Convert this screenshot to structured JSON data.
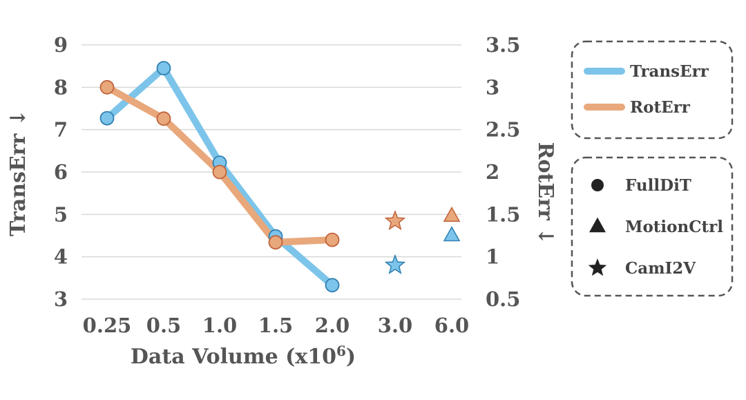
{
  "chart_data": {
    "type": "line",
    "categories": [
      "0.25",
      "0.5",
      "1.0",
      "1.5",
      "2.0",
      "3.0",
      "6.0"
    ],
    "xlabel_main": "Data Volume (x10",
    "xlabel_sup": "6",
    "xlabel_close": ")",
    "ylabel_left": "TransErr ↓",
    "ylabel_right": "RotErr ↓",
    "yticks_left": [
      "3",
      "4",
      "5",
      "6",
      "7",
      "8",
      "9"
    ],
    "yticks_right": [
      "0.5",
      "1",
      "1.5",
      "2",
      "2.5",
      "3",
      "3.5"
    ],
    "ylim_left": [
      3,
      9
    ],
    "ylim_right": [
      0.5,
      3.5
    ],
    "grid": true,
    "series": [
      {
        "name": "TransErr",
        "axis": "left",
        "color": "#7cc4ea",
        "marker_stroke": "#2f7fb0",
        "values": [
          7.27,
          8.45,
          6.22,
          4.48,
          3.33,
          null,
          null
        ]
      },
      {
        "name": "RotErr",
        "axis": "right",
        "color": "#e8a87c",
        "marker_stroke": "#c0623a",
        "values": [
          3.0,
          2.63,
          2.0,
          1.17,
          1.2,
          null,
          null
        ]
      }
    ],
    "other_methods": [
      {
        "method": "CamI2V",
        "category": "3.0",
        "marker": "star",
        "TransErr": 3.8,
        "RotErr": 1.42
      },
      {
        "method": "MotionCtrl",
        "category": "6.0",
        "marker": "triangle",
        "TransErr": 4.5,
        "RotErr": 1.48
      }
    ],
    "legend_series": [
      {
        "label": "TransErr",
        "color": "#7cc4ea"
      },
      {
        "label": "RotErr",
        "color": "#e8a87c"
      }
    ],
    "legend_methods": [
      {
        "label": "FullDiT",
        "marker": "circle"
      },
      {
        "label": "MotionCtrl",
        "marker": "triangle"
      },
      {
        "label": "CamI2V",
        "marker": "star"
      }
    ],
    "legend_placement": "right"
  }
}
